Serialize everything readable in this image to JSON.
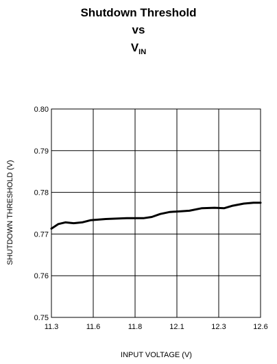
{
  "chart_data": {
    "type": "line",
    "title": {
      "line1": "Shutdown Threshold",
      "line2": "vs",
      "line3_main": "V",
      "line3_sub": "IN"
    },
    "xlabel": "INPUT VOLTAGE (V)",
    "ylabel": "SHUTDOWN THRESHOLD (V)",
    "xlim": [
      11.3,
      12.6
    ],
    "ylim": [
      0.75,
      0.8
    ],
    "x_ticks": [
      11.3,
      11.6,
      11.8,
      12.1,
      12.3,
      12.6
    ],
    "x_tick_labels": [
      "11.3",
      "11.6",
      "11.8",
      "12.1",
      "12.3",
      "12.6"
    ],
    "y_ticks": [
      0.75,
      0.76,
      0.77,
      0.78,
      0.79,
      0.8
    ],
    "y_tick_labels": [
      "0.75",
      "0.76",
      "0.77",
      "0.78",
      "0.79",
      "0.80"
    ],
    "grid": true,
    "series": [
      {
        "color": "#000000",
        "x": [
          11.3,
          11.35,
          11.4,
          11.46,
          11.52,
          11.58,
          11.66,
          11.76,
          11.86,
          11.92,
          11.98,
          12.05,
          12.1,
          12.16,
          12.22,
          12.28,
          12.34,
          12.4,
          12.48,
          12.55,
          12.6
        ],
        "y": [
          0.7713,
          0.7724,
          0.7728,
          0.7726,
          0.7728,
          0.7733,
          0.7736,
          0.7738,
          0.7738,
          0.7741,
          0.7748,
          0.7753,
          0.7754,
          0.7756,
          0.7762,
          0.7763,
          0.7762,
          0.7768,
          0.7773,
          0.7775,
          0.7775
        ]
      }
    ]
  }
}
